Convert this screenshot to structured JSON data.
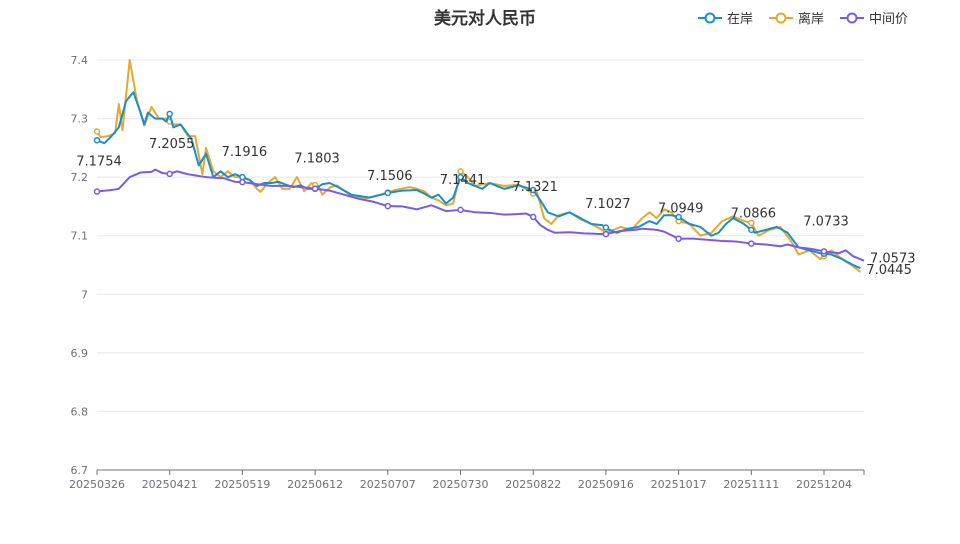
{
  "chart_data": {
    "type": "line",
    "title": "美元对人民币",
    "xlabel": "",
    "ylabel": "",
    "ylim": [
      6.7,
      7.4
    ],
    "yticks": [
      6.7,
      6.8,
      6.9,
      7,
      7.1,
      7.2,
      7.3,
      7.4
    ],
    "ytick_labels": [
      "6.7",
      "6.8",
      "6.9",
      "7",
      "7.1",
      "7.2",
      "7.3",
      "7.4"
    ],
    "x_tick_labels": [
      "20250326",
      "20250421",
      "20250519",
      "20250612",
      "20250707",
      "20250730",
      "20250822",
      "20250916",
      "20251017",
      "20251111",
      "20251204"
    ],
    "x_tick_index": [
      0,
      20,
      40,
      60,
      80,
      100,
      120,
      140,
      160,
      180,
      200
    ],
    "n_points": 212,
    "grid": true,
    "legend_position": "top-right",
    "series": [
      {
        "name": "在岸",
        "color": "#1a8fc7",
        "anchors": [
          [
            0,
            7.263
          ],
          [
            2,
            7.258
          ],
          [
            4,
            7.27
          ],
          [
            6,
            7.285
          ],
          [
            8,
            7.33
          ],
          [
            10,
            7.345
          ],
          [
            12,
            7.31
          ],
          [
            13,
            7.29
          ],
          [
            14,
            7.31
          ],
          [
            16,
            7.3
          ],
          [
            18,
            7.3
          ],
          [
            19,
            7.295
          ],
          [
            20,
            7.308
          ],
          [
            21,
            7.285
          ],
          [
            23,
            7.29
          ],
          [
            26,
            7.265
          ],
          [
            28,
            7.22
          ],
          [
            30,
            7.24
          ],
          [
            32,
            7.2
          ],
          [
            34,
            7.21
          ],
          [
            36,
            7.2
          ],
          [
            38,
            7.205
          ],
          [
            40,
            7.2
          ],
          [
            42,
            7.195
          ],
          [
            44,
            7.185
          ],
          [
            46,
            7.19
          ],
          [
            48,
            7.19
          ],
          [
            50,
            7.192
          ],
          [
            52,
            7.187
          ],
          [
            54,
            7.183
          ],
          [
            56,
            7.186
          ],
          [
            58,
            7.18
          ],
          [
            60,
            7.18
          ],
          [
            62,
            7.188
          ],
          [
            64,
            7.19
          ],
          [
            66,
            7.184
          ],
          [
            70,
            7.17
          ],
          [
            75,
            7.165
          ],
          [
            80,
            7.173
          ],
          [
            84,
            7.177
          ],
          [
            88,
            7.178
          ],
          [
            90,
            7.172
          ],
          [
            92,
            7.165
          ],
          [
            94,
            7.17
          ],
          [
            96,
            7.155
          ],
          [
            98,
            7.165
          ],
          [
            100,
            7.2
          ],
          [
            102,
            7.19
          ],
          [
            104,
            7.185
          ],
          [
            106,
            7.18
          ],
          [
            108,
            7.19
          ],
          [
            112,
            7.18
          ],
          [
            116,
            7.186
          ],
          [
            120,
            7.178
          ],
          [
            122,
            7.16
          ],
          [
            124,
            7.14
          ],
          [
            127,
            7.133
          ],
          [
            130,
            7.14
          ],
          [
            133,
            7.13
          ],
          [
            136,
            7.12
          ],
          [
            139,
            7.118
          ],
          [
            141,
            7.11
          ],
          [
            143,
            7.105
          ],
          [
            146,
            7.112
          ],
          [
            149,
            7.115
          ],
          [
            152,
            7.125
          ],
          [
            154,
            7.12
          ],
          [
            156,
            7.135
          ],
          [
            158,
            7.135
          ],
          [
            160,
            7.132
          ],
          [
            163,
            7.12
          ],
          [
            166,
            7.115
          ],
          [
            169,
            7.1
          ],
          [
            171,
            7.105
          ],
          [
            173,
            7.12
          ],
          [
            175,
            7.13
          ],
          [
            178,
            7.12
          ],
          [
            181,
            7.105
          ],
          [
            184,
            7.11
          ],
          [
            187,
            7.115
          ],
          [
            190,
            7.105
          ],
          [
            193,
            7.08
          ],
          [
            196,
            7.075
          ],
          [
            199,
            7.07
          ],
          [
            202,
            7.068
          ],
          [
            205,
            7.06
          ],
          [
            208,
            7.05
          ],
          [
            210,
            7.0445
          ]
        ]
      },
      {
        "name": "离岸",
        "color": "#e5a930",
        "anchors": [
          [
            0,
            7.278
          ],
          [
            1,
            7.268
          ],
          [
            3,
            7.27
          ],
          [
            5,
            7.275
          ],
          [
            6,
            7.325
          ],
          [
            7,
            7.28
          ],
          [
            8,
            7.34
          ],
          [
            9,
            7.4
          ],
          [
            11,
            7.33
          ],
          [
            13,
            7.288
          ],
          [
            15,
            7.32
          ],
          [
            17,
            7.3
          ],
          [
            19,
            7.3
          ],
          [
            21,
            7.29
          ],
          [
            23,
            7.29
          ],
          [
            25,
            7.27
          ],
          [
            27,
            7.27
          ],
          [
            29,
            7.205
          ],
          [
            30,
            7.25
          ],
          [
            32,
            7.21
          ],
          [
            34,
            7.2
          ],
          [
            36,
            7.21
          ],
          [
            38,
            7.2
          ],
          [
            40,
            7.2
          ],
          [
            42,
            7.195
          ],
          [
            44,
            7.18
          ],
          [
            45,
            7.175
          ],
          [
            47,
            7.19
          ],
          [
            49,
            7.2
          ],
          [
            51,
            7.18
          ],
          [
            53,
            7.18
          ],
          [
            55,
            7.2
          ],
          [
            57,
            7.176
          ],
          [
            59,
            7.19
          ],
          [
            61,
            7.183
          ],
          [
            62,
            7.17
          ],
          [
            64,
            7.182
          ],
          [
            66,
            7.186
          ],
          [
            70,
            7.168
          ],
          [
            74,
            7.164
          ],
          [
            78,
            7.17
          ],
          [
            82,
            7.178
          ],
          [
            86,
            7.183
          ],
          [
            88,
            7.18
          ],
          [
            90,
            7.176
          ],
          [
            92,
            7.165
          ],
          [
            94,
            7.16
          ],
          [
            96,
            7.152
          ],
          [
            98,
            7.155
          ],
          [
            100,
            7.21
          ],
          [
            102,
            7.2
          ],
          [
            104,
            7.185
          ],
          [
            108,
            7.19
          ],
          [
            112,
            7.185
          ],
          [
            116,
            7.187
          ],
          [
            120,
            7.172
          ],
          [
            121,
            7.175
          ],
          [
            123,
            7.13
          ],
          [
            125,
            7.12
          ],
          [
            127,
            7.135
          ],
          [
            130,
            7.14
          ],
          [
            133,
            7.128
          ],
          [
            136,
            7.12
          ],
          [
            139,
            7.11
          ],
          [
            141,
            7.107
          ],
          [
            144,
            7.115
          ],
          [
            147,
            7.11
          ],
          [
            150,
            7.13
          ],
          [
            152,
            7.14
          ],
          [
            154,
            7.13
          ],
          [
            156,
            7.145
          ],
          [
            158,
            7.14
          ],
          [
            160,
            7.125
          ],
          [
            163,
            7.12
          ],
          [
            166,
            7.1
          ],
          [
            169,
            7.105
          ],
          [
            172,
            7.125
          ],
          [
            175,
            7.133
          ],
          [
            178,
            7.125
          ],
          [
            180,
            7.122
          ],
          [
            182,
            7.1
          ],
          [
            185,
            7.11
          ],
          [
            188,
            7.115
          ],
          [
            191,
            7.09
          ],
          [
            193,
            7.068
          ],
          [
            196,
            7.075
          ],
          [
            199,
            7.06
          ],
          [
            202,
            7.075
          ],
          [
            205,
            7.06
          ],
          [
            208,
            7.048
          ],
          [
            210,
            7.038
          ]
        ]
      },
      {
        "name": "中间价",
        "color": "#7b5be6",
        "anchors": [
          [
            0,
            7.1754
          ],
          [
            4,
            7.178
          ],
          [
            6,
            7.18
          ],
          [
            9,
            7.2
          ],
          [
            12,
            7.208
          ],
          [
            15,
            7.209
          ],
          [
            16,
            7.213
          ],
          [
            18,
            7.207
          ],
          [
            20,
            7.2055
          ],
          [
            22,
            7.21
          ],
          [
            25,
            7.205
          ],
          [
            30,
            7.2
          ],
          [
            35,
            7.198
          ],
          [
            38,
            7.192
          ],
          [
            40,
            7.1916
          ],
          [
            44,
            7.188
          ],
          [
            48,
            7.185
          ],
          [
            52,
            7.185
          ],
          [
            56,
            7.183
          ],
          [
            60,
            7.1803
          ],
          [
            64,
            7.177
          ],
          [
            68,
            7.17
          ],
          [
            72,
            7.163
          ],
          [
            76,
            7.158
          ],
          [
            80,
            7.1506
          ],
          [
            84,
            7.15
          ],
          [
            88,
            7.145
          ],
          [
            92,
            7.152
          ],
          [
            94,
            7.147
          ],
          [
            96,
            7.142
          ],
          [
            100,
            7.1441
          ],
          [
            104,
            7.14
          ],
          [
            108,
            7.139
          ],
          [
            112,
            7.136
          ],
          [
            116,
            7.137
          ],
          [
            118,
            7.138
          ],
          [
            120,
            7.1321
          ],
          [
            122,
            7.118
          ],
          [
            124,
            7.11
          ],
          [
            126,
            7.105
          ],
          [
            130,
            7.106
          ],
          [
            134,
            7.104
          ],
          [
            138,
            7.103
          ],
          [
            140,
            7.1027
          ],
          [
            144,
            7.108
          ],
          [
            148,
            7.11
          ],
          [
            150,
            7.112
          ],
          [
            154,
            7.11
          ],
          [
            156,
            7.107
          ],
          [
            160,
            7.0949
          ],
          [
            164,
            7.095
          ],
          [
            168,
            7.093
          ],
          [
            172,
            7.091
          ],
          [
            176,
            7.09
          ],
          [
            180,
            7.0866
          ],
          [
            184,
            7.085
          ],
          [
            188,
            7.082
          ],
          [
            190,
            7.085
          ],
          [
            193,
            7.08
          ],
          [
            196,
            7.078
          ],
          [
            200,
            7.0733
          ],
          [
            204,
            7.07
          ],
          [
            206,
            7.075
          ],
          [
            208,
            7.065
          ],
          [
            211,
            7.0573
          ]
        ]
      }
    ],
    "annotations": [
      {
        "series": 2,
        "index": 0,
        "label": "7.1754"
      },
      {
        "series": 2,
        "index": 20,
        "label": "7.2055"
      },
      {
        "series": 2,
        "index": 40,
        "label": "7.1916"
      },
      {
        "series": 2,
        "index": 60,
        "label": "7.1803"
      },
      {
        "series": 2,
        "index": 80,
        "label": "7.1506"
      },
      {
        "series": 2,
        "index": 100,
        "label": "7.1441"
      },
      {
        "series": 2,
        "index": 120,
        "label": "7.1321"
      },
      {
        "series": 2,
        "index": 140,
        "label": "7.1027"
      },
      {
        "series": 2,
        "index": 160,
        "label": "7.0949"
      },
      {
        "series": 2,
        "index": 180,
        "label": "7.0866"
      },
      {
        "series": 2,
        "index": 200,
        "label": "7.0733"
      }
    ],
    "end_labels": [
      {
        "series": 2,
        "label": "7.0573"
      },
      {
        "series": 0,
        "label": "7.0445"
      }
    ]
  }
}
